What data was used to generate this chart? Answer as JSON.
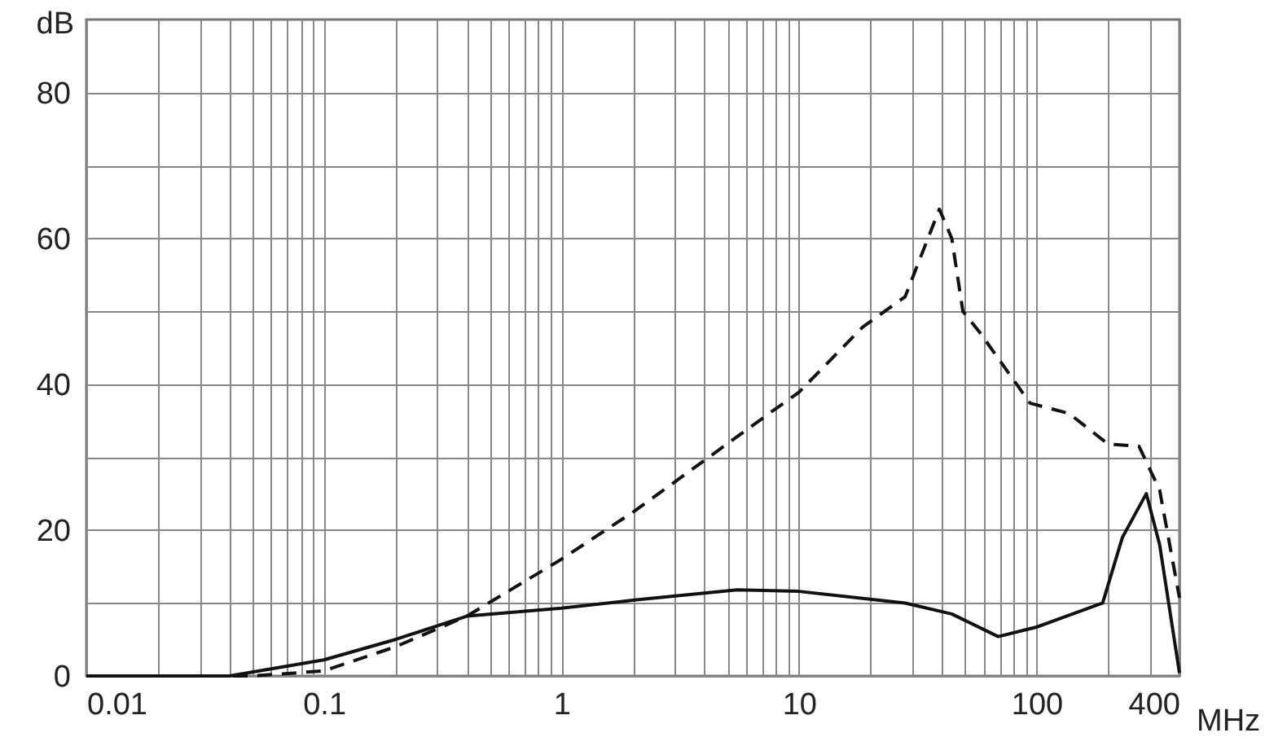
{
  "chart_data": {
    "type": "line",
    "xlabel": "MHz",
    "ylabel": "dB",
    "log": "x",
    "grid": true,
    "marker": "none",
    "xlim": [
      0.01,
      400
    ],
    "ylim": [
      0,
      90
    ],
    "xticks": [
      0.01,
      {
        "value": 0.02,
        "label": null
      },
      {
        "value": 0.03,
        "label": null
      },
      {
        "value": 0.04,
        "label": null
      },
      {
        "value": 0.05,
        "label": null
      },
      {
        "value": 0.06,
        "label": null
      },
      {
        "value": 0.07,
        "label": null
      },
      {
        "value": 0.08,
        "label": null
      },
      {
        "value": 0.09,
        "label": null
      },
      0.1,
      {
        "value": 0.2,
        "label": null
      },
      {
        "value": 0.3,
        "label": null
      },
      {
        "value": 0.4,
        "label": null
      },
      {
        "value": 0.5,
        "label": null
      },
      {
        "value": 0.6,
        "label": null
      },
      {
        "value": 0.7,
        "label": null
      },
      {
        "value": 0.8,
        "label": null
      },
      {
        "value": 0.9,
        "label": null
      },
      1,
      {
        "value": 2,
        "label": null
      },
      {
        "value": 3,
        "label": null
      },
      {
        "value": 4,
        "label": null
      },
      {
        "value": 5,
        "label": null
      },
      {
        "value": 6,
        "label": null
      },
      {
        "value": 7,
        "label": null
      },
      {
        "value": 8,
        "label": null
      },
      {
        "value": 9,
        "label": null
      },
      10,
      {
        "value": 20,
        "label": null
      },
      {
        "value": 30,
        "label": null
      },
      {
        "value": 40,
        "label": null
      },
      {
        "value": 50,
        "label": null
      },
      {
        "value": 60,
        "label": null
      },
      {
        "value": 70,
        "label": null
      },
      {
        "value": 80,
        "label": null
      },
      {
        "value": 90,
        "label": null
      },
      100,
      {
        "value": 200,
        "label": null
      },
      {
        "value": 300,
        "label": null
      },
      400
    ],
    "yticks": [
      0,
      {
        "value": 10,
        "label": null
      },
      20,
      {
        "value": 30,
        "label": null
      },
      40,
      {
        "value": 50,
        "label": null
      },
      60,
      {
        "value": 70,
        "label": null
      },
      80
    ],
    "series": [
      {
        "color": "#111111",
        "line_style": "solid",
        "x": [
          0.01,
          0.04,
          0.1,
          0.2,
          0.4,
          1,
          2.03,
          5.5,
          10,
          28,
          44,
          69,
          100,
          190,
          230,
          290,
          330,
          400
        ],
        "values": [
          0,
          0,
          2.2,
          5,
          8.2,
          9.3,
          10.4,
          11.8,
          11.6,
          10,
          8.5,
          5.4,
          6.7,
          10,
          19,
          25,
          18,
          0.4
        ]
      },
      {
        "color": "#111111",
        "line_style": "dashed",
        "x": [
          0.01,
          0.05,
          0.1,
          0.2,
          0.4,
          1,
          2.03,
          7.5,
          10,
          18.5,
          28,
          39,
          44,
          49,
          58,
          94,
          137,
          200,
          270,
          330,
          400
        ],
        "values": [
          0,
          0,
          0.7,
          4,
          8.2,
          16,
          22.6,
          36,
          38.9,
          47.8,
          52,
          64,
          60,
          50,
          47,
          37.4,
          36,
          31.8,
          31.5,
          25.5,
          10.7
        ]
      }
    ]
  }
}
